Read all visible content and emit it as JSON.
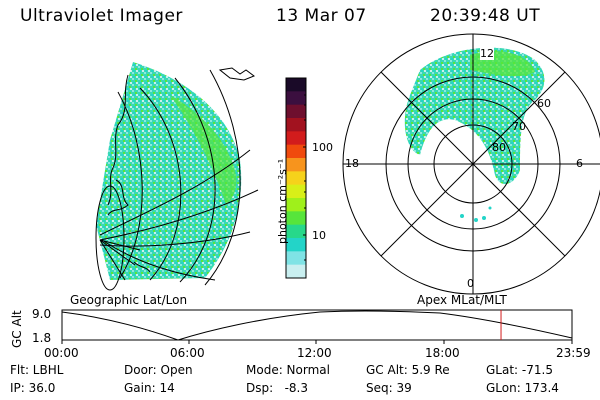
{
  "header": {
    "title": "Ultraviolet Imager",
    "date": "13 Mar 07",
    "time": "20:39:48 UT"
  },
  "colorbar": {
    "unit_label": "photon cm⁻²s⁻¹",
    "ticks": [
      "100",
      "10"
    ],
    "colors": [
      "#1a0a28",
      "#3b0f3f",
      "#6e0f2e",
      "#a2121f",
      "#d21c1c",
      "#f04a0d",
      "#f7941d",
      "#f6d21b",
      "#d8ef18",
      "#9ff01b",
      "#57e53b",
      "#27d88a",
      "#23d4c8",
      "#7fe3e5",
      "#c9eff0"
    ]
  },
  "geo_panel": {
    "label": "Geographic Lat/Lon"
  },
  "polar_panel": {
    "label": "Apex MLat/MLT",
    "mlt_labels": [
      "12",
      "18",
      "6",
      "0"
    ],
    "lat_labels": [
      "60",
      "70",
      "80"
    ]
  },
  "timeline": {
    "ylabel": "GC Alt",
    "yticks": [
      "9.0",
      "1.8"
    ],
    "xticks": [
      "00:00",
      "06:00",
      "12:00",
      "18:00",
      "23:59"
    ],
    "marker_color": "#d21c1c",
    "marker_time_hours": 20.66
  },
  "status": {
    "flt": "Flt: LBHL",
    "ip": "IP: 36.0",
    "door": "Door: Open",
    "gain": "Gain: 14",
    "mode": "Mode: Normal",
    "dsp": "Dsp:   -8.3",
    "gc_alt": "GC Alt: 5.9 Re",
    "seq": "Seq: 39",
    "glat": "GLat: -71.5",
    "glon": "GLon: 173.4"
  },
  "colors": {
    "aurora_cyan": "#7fe3e5",
    "aurora_teal": "#23d4c8",
    "aurora_green": "#57e53b",
    "line": "#000000"
  }
}
